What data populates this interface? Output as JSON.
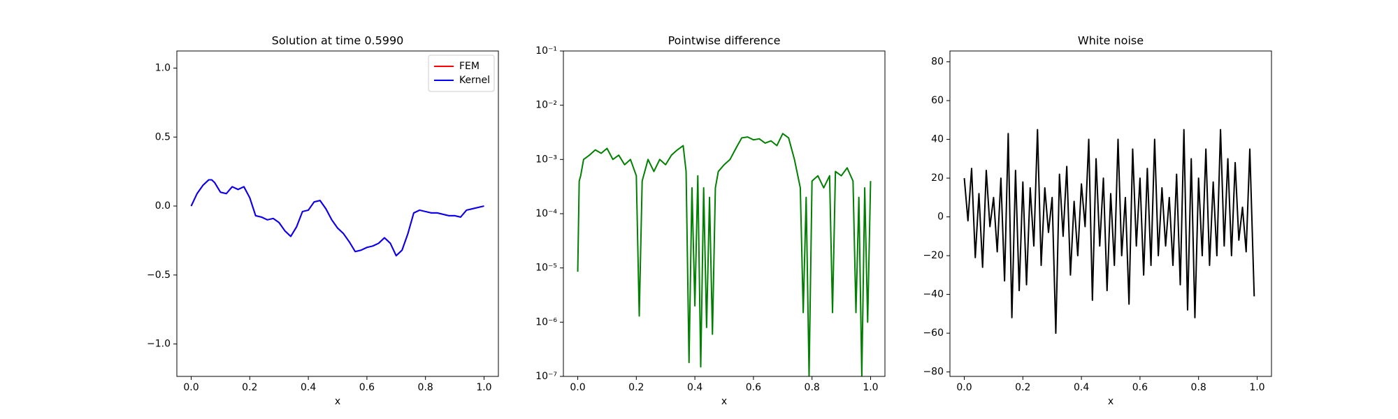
{
  "chart_data": [
    {
      "type": "line",
      "title": "Solution at time 0.5990",
      "xlabel": "x",
      "legend": "upper right",
      "x": [
        0,
        0.02,
        0.04,
        0.06,
        0.07,
        0.08,
        0.1,
        0.12,
        0.14,
        0.16,
        0.18,
        0.2,
        0.22,
        0.24,
        0.26,
        0.28,
        0.3,
        0.32,
        0.34,
        0.36,
        0.38,
        0.4,
        0.42,
        0.44,
        0.46,
        0.48,
        0.5,
        0.52,
        0.54,
        0.56,
        0.58,
        0.6,
        0.62,
        0.64,
        0.66,
        0.68,
        0.7,
        0.72,
        0.74,
        0.76,
        0.78,
        0.8,
        0.82,
        0.84,
        0.86,
        0.88,
        0.9,
        0.92,
        0.94,
        0.96,
        1.0
      ],
      "series": [
        {
          "name": "FEM",
          "color": "#ff0000",
          "values": [
            0,
            0.09,
            0.15,
            0.19,
            0.19,
            0.17,
            0.1,
            0.09,
            0.14,
            0.12,
            0.14,
            0.06,
            -0.07,
            -0.08,
            -0.1,
            -0.09,
            -0.12,
            -0.18,
            -0.22,
            -0.15,
            -0.04,
            -0.03,
            0.03,
            0.04,
            -0.02,
            -0.1,
            -0.16,
            -0.2,
            -0.26,
            -0.33,
            -0.32,
            -0.3,
            -0.29,
            -0.27,
            -0.23,
            -0.27,
            -0.36,
            -0.32,
            -0.2,
            -0.05,
            -0.03,
            -0.04,
            -0.05,
            -0.05,
            -0.06,
            -0.07,
            -0.07,
            -0.08,
            -0.03,
            -0.02,
            0
          ]
        },
        {
          "name": "Kernel",
          "color": "#0000ff",
          "values": [
            0,
            0.09,
            0.15,
            0.19,
            0.19,
            0.17,
            0.1,
            0.09,
            0.14,
            0.12,
            0.14,
            0.06,
            -0.07,
            -0.08,
            -0.1,
            -0.09,
            -0.12,
            -0.18,
            -0.22,
            -0.15,
            -0.04,
            -0.03,
            0.03,
            0.04,
            -0.02,
            -0.1,
            -0.16,
            -0.2,
            -0.26,
            -0.33,
            -0.32,
            -0.3,
            -0.29,
            -0.27,
            -0.23,
            -0.27,
            -0.36,
            -0.32,
            -0.2,
            -0.05,
            -0.03,
            -0.04,
            -0.05,
            -0.05,
            -0.06,
            -0.07,
            -0.07,
            -0.08,
            -0.03,
            -0.02,
            0
          ]
        }
      ],
      "xlim": [
        -0.049,
        1.049
      ],
      "xticks": [
        {
          "value": 0,
          "label": "0.0"
        },
        {
          "value": 0.2,
          "label": "0.2"
        },
        {
          "value": 0.4,
          "label": "0.4"
        },
        {
          "value": 0.6,
          "label": "0.6"
        },
        {
          "value": 0.8,
          "label": "0.8"
        },
        {
          "value": 1,
          "label": "1.0"
        }
      ],
      "ylim": [
        -1.235,
        1.124
      ],
      "yticks": [
        {
          "value": -1,
          "label": "−1.0"
        },
        {
          "value": -0.5,
          "label": "−0.5"
        },
        {
          "value": 0,
          "label": "0.0"
        },
        {
          "value": 0.5,
          "label": "0.5"
        },
        {
          "value": 1,
          "label": "1.0"
        }
      ]
    },
    {
      "type": "line",
      "title": "Pointwise difference",
      "xlabel": "x",
      "log_y": true,
      "color": "#008000",
      "x": [
        0,
        0.005,
        0.01,
        0.02,
        0.04,
        0.06,
        0.08,
        0.1,
        0.12,
        0.14,
        0.16,
        0.18,
        0.2,
        0.21,
        0.22,
        0.24,
        0.26,
        0.28,
        0.3,
        0.32,
        0.34,
        0.36,
        0.37,
        0.38,
        0.39,
        0.4,
        0.41,
        0.42,
        0.43,
        0.44,
        0.45,
        0.46,
        0.47,
        0.48,
        0.5,
        0.52,
        0.54,
        0.56,
        0.58,
        0.6,
        0.62,
        0.64,
        0.66,
        0.68,
        0.7,
        0.72,
        0.74,
        0.76,
        0.77,
        0.78,
        0.79,
        0.8,
        0.82,
        0.84,
        0.86,
        0.87,
        0.88,
        0.9,
        0.92,
        0.94,
        0.95,
        0.96,
        0.97,
        0.98,
        0.99,
        1.0
      ],
      "values": [
        8.5e-06,
        0.0004,
        0.0005,
        0.001,
        0.0012,
        0.0015,
        0.0013,
        0.0016,
        0.001,
        0.0012,
        0.0008,
        0.001,
        0.0005,
        1.3e-06,
        0.0004,
        0.001,
        0.0006,
        0.001,
        0.0008,
        0.0012,
        0.0015,
        0.0018,
        0.0006,
        1.8e-07,
        0.0003,
        2e-06,
        0.0005,
        1.5e-07,
        0.0003,
        8e-07,
        0.0002,
        6e-07,
        0.0003,
        0.0006,
        0.0008,
        0.001,
        0.0016,
        0.0025,
        0.0026,
        0.0023,
        0.0024,
        0.002,
        0.0022,
        0.0018,
        0.003,
        0.0025,
        0.001,
        0.0003,
        1.5e-06,
        0.0002,
        1e-07,
        0.0004,
        0.0005,
        0.0003,
        0.0005,
        1.5e-06,
        0.0006,
        0.0005,
        0.0007,
        0.0004,
        1.5e-06,
        0.0002,
        1e-07,
        0.0003,
        1e-06,
        0.0004
      ],
      "xlim": [
        -0.049,
        1.049
      ],
      "xticks": [
        {
          "value": 0,
          "label": "0.0"
        },
        {
          "value": 0.2,
          "label": "0.2"
        },
        {
          "value": 0.4,
          "label": "0.4"
        },
        {
          "value": 0.6,
          "label": "0.6"
        },
        {
          "value": 0.8,
          "label": "0.8"
        },
        {
          "value": 1,
          "label": "1.0"
        }
      ],
      "ylim": [
        1e-07,
        0.1
      ],
      "yticks": [
        {
          "value": 1e-07,
          "label": "10⁻⁷"
        },
        {
          "value": 1e-06,
          "label": "10⁻⁶"
        },
        {
          "value": 1e-05,
          "label": "10⁻⁵"
        },
        {
          "value": 0.0001,
          "label": "10⁻⁴"
        },
        {
          "value": 0.001,
          "label": "10⁻³"
        },
        {
          "value": 0.01,
          "label": "10⁻²"
        },
        {
          "value": 0.1,
          "label": "10⁻¹"
        }
      ]
    },
    {
      "type": "line",
      "title": "White noise",
      "xlabel": "x",
      "color": "#000000",
      "x": [
        0,
        0.0125,
        0.025,
        0.0375,
        0.05,
        0.0625,
        0.075,
        0.0875,
        0.1,
        0.1125,
        0.125,
        0.1375,
        0.15,
        0.1625,
        0.175,
        0.1875,
        0.2,
        0.2125,
        0.225,
        0.2375,
        0.25,
        0.2625,
        0.275,
        0.2875,
        0.3,
        0.3125,
        0.325,
        0.3375,
        0.35,
        0.3625,
        0.375,
        0.3875,
        0.4,
        0.4125,
        0.425,
        0.4375,
        0.45,
        0.4625,
        0.475,
        0.4875,
        0.5,
        0.5125,
        0.525,
        0.5375,
        0.55,
        0.5625,
        0.575,
        0.5875,
        0.6,
        0.6125,
        0.625,
        0.6375,
        0.65,
        0.6625,
        0.675,
        0.6875,
        0.7,
        0.7125,
        0.725,
        0.7375,
        0.75,
        0.7625,
        0.775,
        0.7875,
        0.8,
        0.8125,
        0.825,
        0.8375,
        0.85,
        0.8625,
        0.875,
        0.8875,
        0.9,
        0.9125,
        0.925,
        0.9375,
        0.95,
        0.9625,
        0.975,
        0.99
      ],
      "values": [
        20,
        -2,
        25,
        -21,
        12,
        -26,
        24,
        -5,
        10,
        -18,
        20,
        -33,
        43,
        -52,
        24,
        -38,
        18,
        -35,
        15,
        -15,
        45,
        -25,
        15,
        -8,
        10,
        -60,
        22,
        -10,
        26,
        -30,
        8,
        -20,
        17,
        -5,
        40,
        -43,
        30,
        -15,
        20,
        -38,
        12,
        -25,
        40,
        -20,
        10,
        -45,
        35,
        -15,
        20,
        -30,
        25,
        -25,
        40,
        -20,
        15,
        -15,
        10,
        -25,
        22,
        -35,
        45,
        -48,
        30,
        -52,
        20,
        -20,
        35,
        -25,
        18,
        -20,
        45,
        -15,
        30,
        -20,
        28,
        -12,
        5,
        -18,
        35,
        -41
      ],
      "xlim": [
        -0.049,
        1.049
      ],
      "xticks": [
        {
          "value": 0,
          "label": "0.0"
        },
        {
          "value": 0.2,
          "label": "0.2"
        },
        {
          "value": 0.4,
          "label": "0.4"
        },
        {
          "value": 0.6,
          "label": "0.6"
        },
        {
          "value": 0.8,
          "label": "0.8"
        },
        {
          "value": 1,
          "label": "1.0"
        }
      ],
      "ylim": [
        -82.3,
        85.6
      ],
      "yticks": [
        {
          "value": -80,
          "label": "−80"
        },
        {
          "value": -60,
          "label": "−60"
        },
        {
          "value": -40,
          "label": "−40"
        },
        {
          "value": -20,
          "label": "−20"
        },
        0,
        20,
        40,
        60,
        80
      ]
    }
  ]
}
